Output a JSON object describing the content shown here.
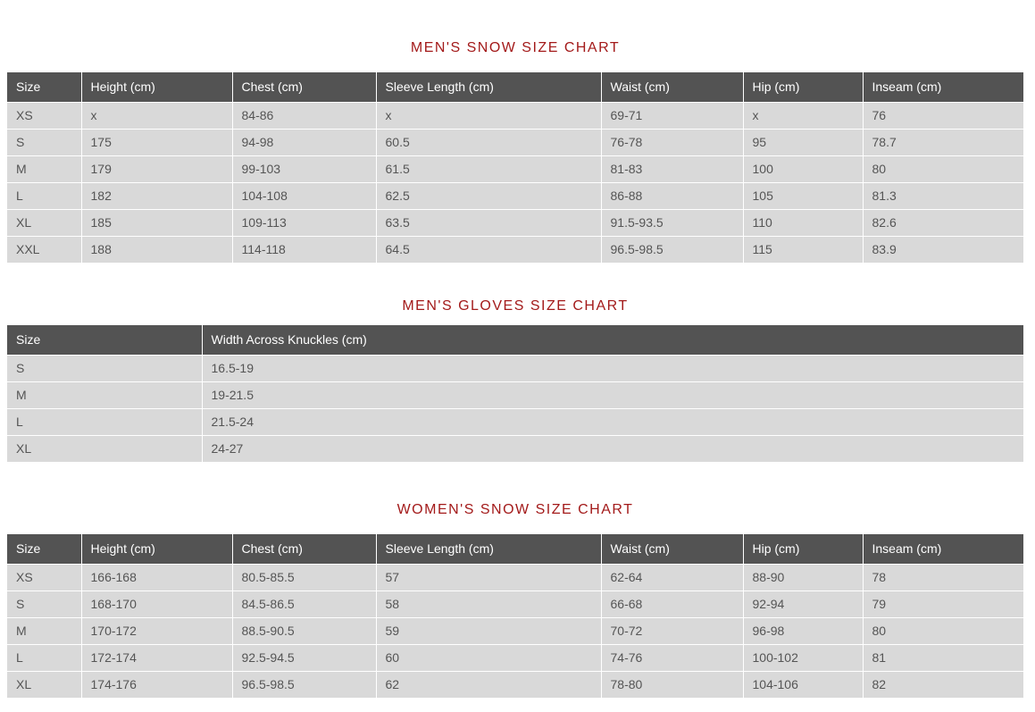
{
  "mens_snow": {
    "title": "MEN'S SNOW SIZE CHART",
    "headers": [
      "Size",
      "Height (cm)",
      "Chest (cm)",
      "Sleeve Length (cm)",
      "Waist (cm)",
      "Hip (cm)",
      "Inseam (cm)"
    ],
    "rows": [
      [
        "XS",
        "x",
        "84-86",
        "x",
        "69-71",
        "x",
        "76"
      ],
      [
        "S",
        "175",
        "94-98",
        "60.5",
        "76-78",
        "95",
        "78.7"
      ],
      [
        "M",
        "179",
        "99-103",
        "61.5",
        "81-83",
        "100",
        "80"
      ],
      [
        "L",
        "182",
        "104-108",
        "62.5",
        "86-88",
        "105",
        "81.3"
      ],
      [
        "XL",
        "185",
        "109-113",
        "63.5",
        "91.5-93.5",
        "110",
        "82.6"
      ],
      [
        "XXL",
        "188",
        "114-118",
        "64.5",
        "96.5-98.5",
        "115",
        "83.9"
      ]
    ]
  },
  "mens_gloves": {
    "title": "MEN'S GLOVES SIZE CHART",
    "headers": [
      "Size",
      "Width Across Knuckles (cm)"
    ],
    "rows": [
      [
        "S",
        "16.5-19"
      ],
      [
        "M",
        "19-21.5"
      ],
      [
        "L",
        "21.5-24"
      ],
      [
        "XL",
        "24-27"
      ]
    ]
  },
  "womens_snow": {
    "title": "WOMEN'S SNOW SIZE CHART",
    "headers": [
      "Size",
      "Height (cm)",
      "Chest (cm)",
      "Sleeve Length (cm)",
      "Waist (cm)",
      "Hip (cm)",
      "Inseam (cm)"
    ],
    "rows": [
      [
        "XS",
        "166-168",
        "80.5-85.5",
        "57",
        "62-64",
        "88-90",
        "78"
      ],
      [
        "S",
        "168-170",
        "84.5-86.5",
        "58",
        "66-68",
        "92-94",
        "79"
      ],
      [
        "M",
        "170-172",
        "88.5-90.5",
        "59",
        "70-72",
        "96-98",
        "80"
      ],
      [
        "L",
        "172-174",
        "92.5-94.5",
        "60",
        "74-76",
        "100-102",
        "81"
      ],
      [
        "XL",
        "174-176",
        "96.5-98.5",
        "62",
        "78-80",
        "104-106",
        "82"
      ]
    ]
  },
  "colors": {
    "title": "#a31a1a",
    "header_bg": "#535353",
    "row_bg": "#d9d9d9"
  }
}
